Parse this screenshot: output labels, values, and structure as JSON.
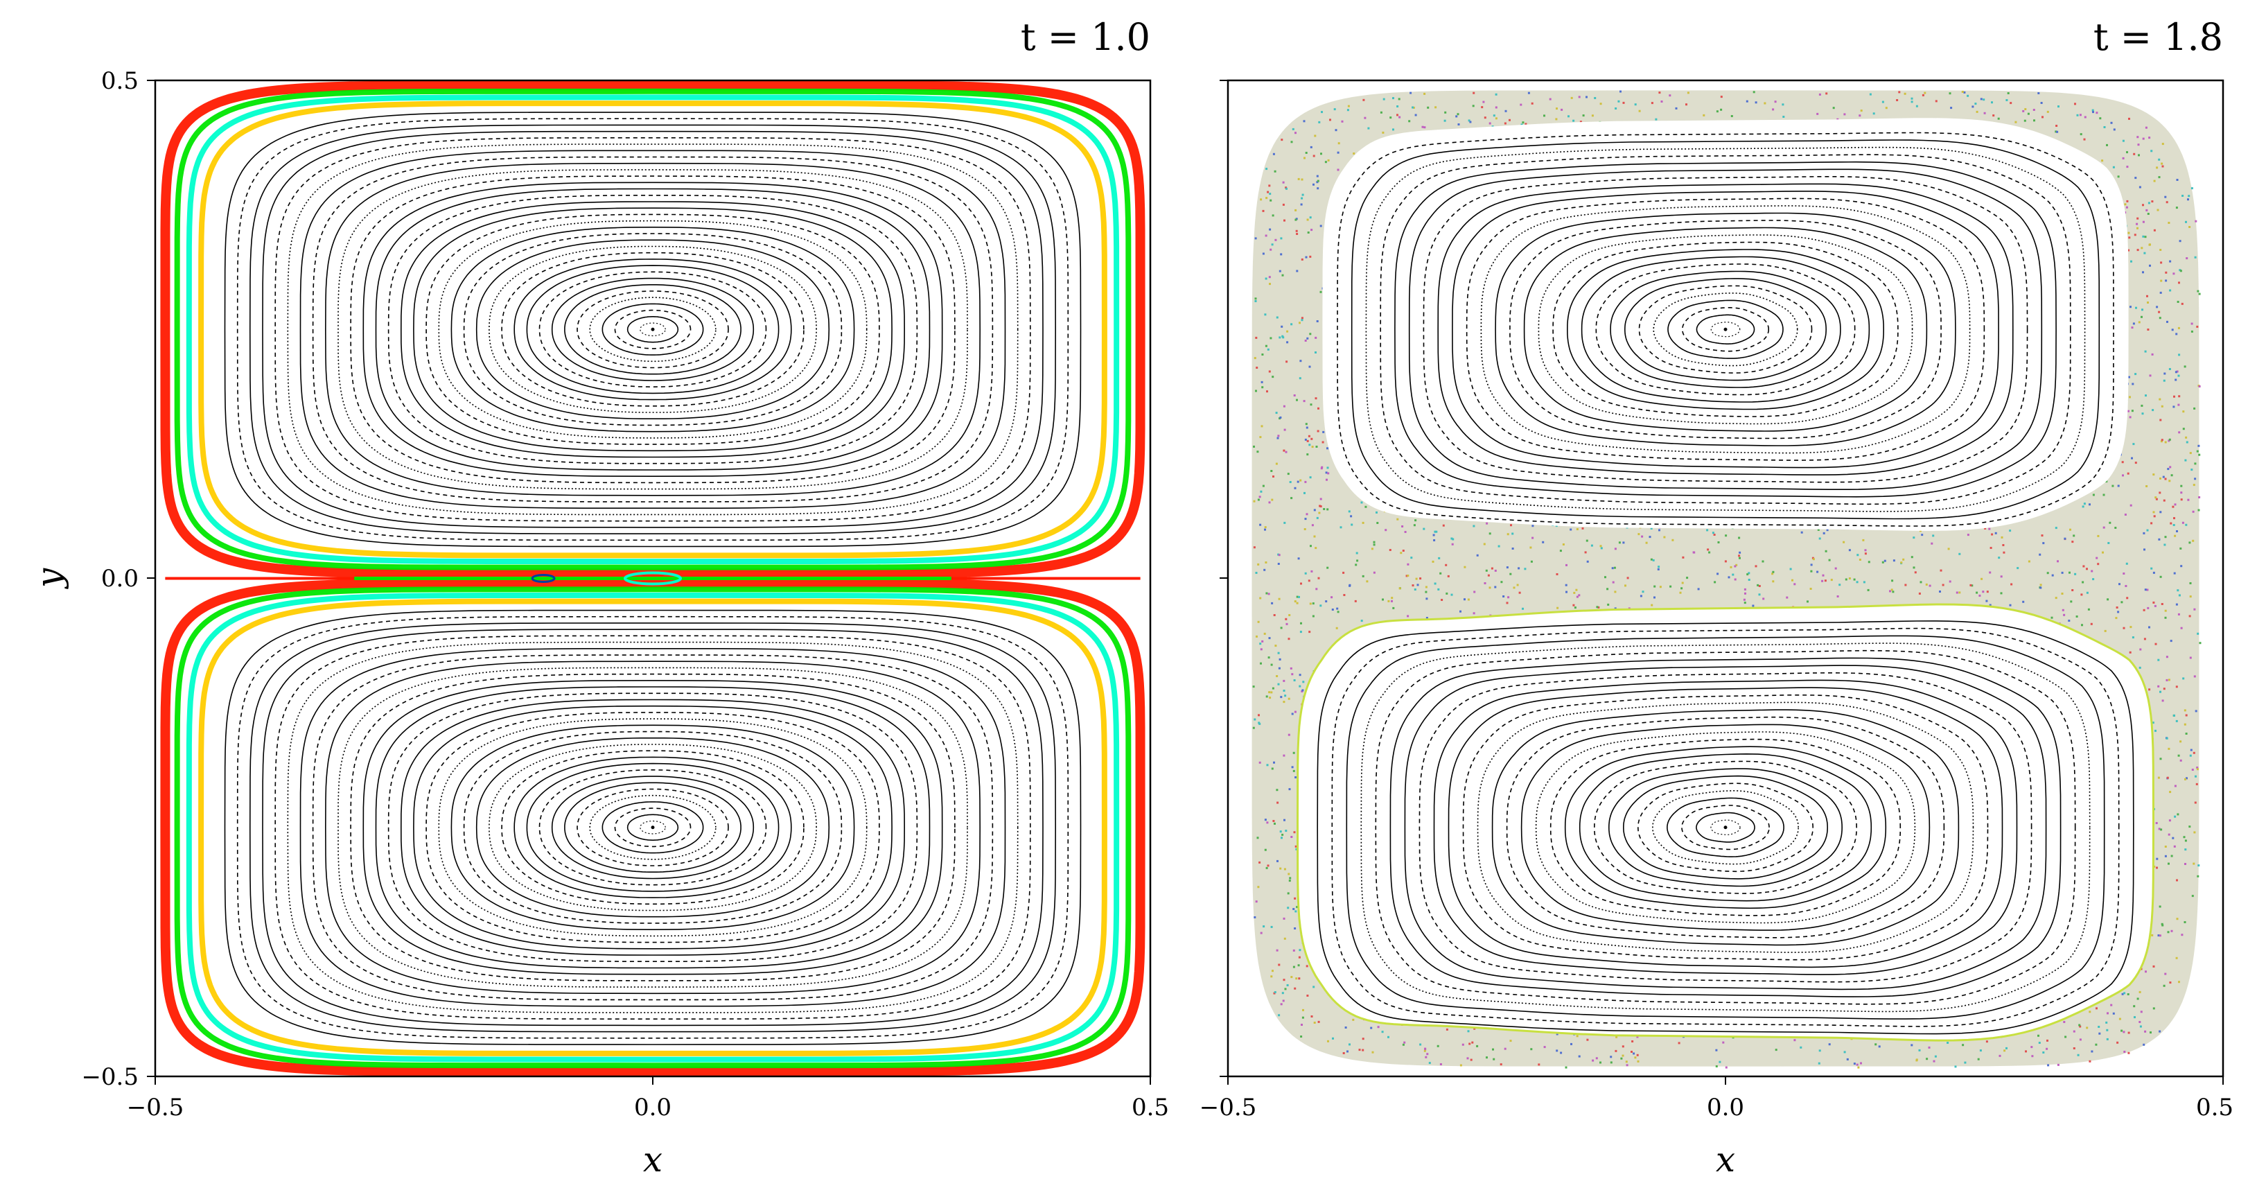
{
  "figure": {
    "panels": [
      {
        "title": "t = 1.0",
        "xlabel": "x",
        "ylabel": "y",
        "x_ticks": [
          "−0.5",
          "0.0",
          "0.5"
        ],
        "y_ticks": [
          "0.5",
          "0.0",
          "−0.5"
        ]
      },
      {
        "title": "t = 1.8",
        "xlabel": "x",
        "ylabel": "",
        "x_ticks": [
          "−0.5",
          "0.0",
          "0.5"
        ],
        "y_ticks": []
      }
    ]
  },
  "chart_data": [
    {
      "type": "scatter",
      "description_kind": "Poincaré section / tracer particle trajectories",
      "title": "t = 1.0",
      "xlabel": "x",
      "ylabel": "y",
      "xlim": [
        -0.5,
        0.5
      ],
      "ylim": [
        -0.5,
        0.5
      ],
      "x_ticks": [
        -0.5,
        0.0,
        0.5
      ],
      "y_ticks": [
        -0.5,
        0.0,
        0.5
      ],
      "grid": false,
      "vortex_centers": [
        [
          0.0,
          0.25
        ],
        [
          0.0,
          -0.25
        ]
      ],
      "chaotic_region": "thin band near cell boundaries and along y = 0",
      "colors": [
        "#000000",
        "#ff1a00",
        "#00e600",
        "#00ffcc",
        "#ffcc00"
      ]
    },
    {
      "type": "scatter",
      "description_kind": "Poincaré section / tracer particle trajectories",
      "title": "t = 1.8",
      "xlabel": "x",
      "ylabel": "",
      "xlim": [
        -0.5,
        0.5
      ],
      "ylim": [
        -0.5,
        0.5
      ],
      "x_ticks": [
        -0.5,
        0.0,
        0.5
      ],
      "y_ticks": [
        -0.5,
        0.0,
        0.5
      ],
      "grid": false,
      "vortex_centers": [
        [
          0.0,
          0.25
        ],
        [
          0.0,
          -0.25
        ]
      ],
      "chaotic_region": "wide multicolored band around both vortices and across y = 0",
      "colors": [
        "#000000",
        "#e05050",
        "#50b050",
        "#5070d0",
        "#d0c040",
        "#c060c0",
        "#40c0c0"
      ]
    }
  ]
}
